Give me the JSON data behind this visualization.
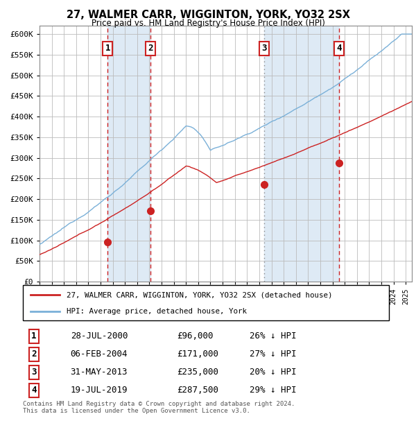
{
  "title": "27, WALMER CARR, WIGGINTON, YORK, YO32 2SX",
  "subtitle": "Price paid vs. HM Land Registry's House Price Index (HPI)",
  "ylim": [
    0,
    620000
  ],
  "yticks": [
    0,
    50000,
    100000,
    150000,
    200000,
    250000,
    300000,
    350000,
    400000,
    450000,
    500000,
    550000,
    600000
  ],
  "ytick_labels": [
    "£0",
    "£50K",
    "£100K",
    "£150K",
    "£200K",
    "£250K",
    "£300K",
    "£350K",
    "£400K",
    "£450K",
    "£500K",
    "£550K",
    "£600K"
  ],
  "x_start_year": 1995,
  "x_end_year": 2025,
  "hpi_color": "#7ab0d8",
  "price_color": "#cc2222",
  "shade_color": "#deeaf5",
  "grid_color": "#bbbbbb",
  "sale_dates": [
    "2000-07-28",
    "2004-02-06",
    "2013-05-31",
    "2019-07-19"
  ],
  "sale_prices": [
    96000,
    171000,
    235000,
    287500
  ],
  "sale_labels": [
    "1",
    "2",
    "3",
    "4"
  ],
  "vline_colors": [
    "#cc2222",
    "#cc2222",
    "#888888",
    "#cc2222"
  ],
  "vline_styles": [
    "--",
    "--",
    ":",
    "--"
  ],
  "legend_line1": "27, WALMER CARR, WIGGINTON, YORK, YO32 2SX (detached house)",
  "legend_line2": "HPI: Average price, detached house, York",
  "table_rows": [
    [
      "1",
      "28-JUL-2000",
      "£96,000",
      "26% ↓ HPI"
    ],
    [
      "2",
      "06-FEB-2004",
      "£171,000",
      "27% ↓ HPI"
    ],
    [
      "3",
      "31-MAY-2013",
      "£235,000",
      "20% ↓ HPI"
    ],
    [
      "4",
      "19-JUL-2019",
      "£287,500",
      "29% ↓ HPI"
    ]
  ],
  "footnote": "Contains HM Land Registry data © Crown copyright and database right 2024.\nThis data is licensed under the Open Government Licence v3.0.",
  "background_color": "#ffffff"
}
